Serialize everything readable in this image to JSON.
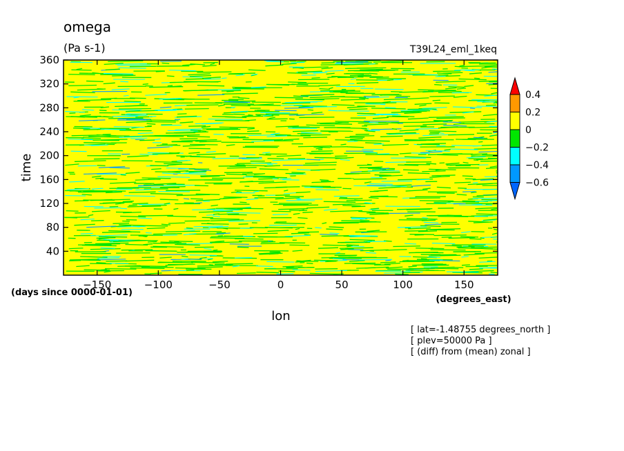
{
  "chart_data": {
    "type": "heatmap",
    "title": "omega",
    "units": "(Pa s-1)",
    "run_name": "T39L24_eml_1keq",
    "xlabel": "lon",
    "xunits": "(degrees_east)",
    "ylabel": "time",
    "yunits": "(days since 0000-01-01)",
    "xlim": [
      -177.5,
      177.5
    ],
    "ylim": [
      0,
      360
    ],
    "x_ticks": [
      -150,
      -100,
      -50,
      0,
      50,
      100,
      150
    ],
    "y_ticks": [
      40,
      80,
      120,
      160,
      200,
      240,
      280,
      320,
      360
    ],
    "colorbar": {
      "levels": [
        0.4,
        0.2,
        0,
        -0.2,
        -0.4,
        -0.6
      ],
      "colors": [
        "#ff0000",
        "#ff9900",
        "#ffff00",
        "#00e600",
        "#00ffff",
        "#0099ff",
        "#0066ff"
      ],
      "extend": "both"
    },
    "notes": [
      "[ lat=-1.48755 degrees_north ]",
      "[ plev=50000 Pa ]",
      "[ (diff) from (mean) zonal ]"
    ]
  }
}
